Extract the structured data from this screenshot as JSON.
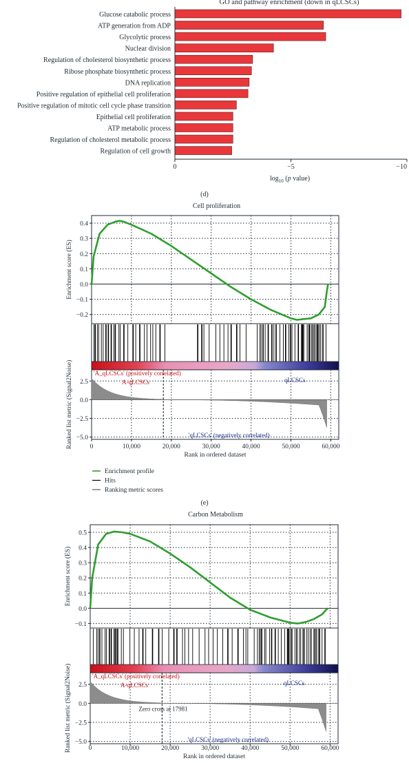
{
  "figure": {
    "panel_d_label": "(d)",
    "panel_e_label": "(e)"
  },
  "legend": {
    "items": [
      {
        "label": "Enrichment profile",
        "color": "#2e9e2e"
      },
      {
        "label": "Hits",
        "color": "#000000"
      },
      {
        "label": "Ranking metric scores",
        "color": "#808080"
      }
    ]
  },
  "chart_data": [
    {
      "id": "d",
      "type": "bar",
      "orientation": "horizontal",
      "title": "GO and pathway enrichment (down in qLCSCs)",
      "xlabel": "log10 (p value)",
      "xlabel_parts": {
        "prefix": "log",
        "sub": "10",
        "mid": " (",
        "ital": "p",
        "suffix": " value)"
      },
      "xlim": [
        0,
        -10
      ],
      "xticks": [
        0,
        -5,
        -10
      ],
      "xtick_labels": [
        "0",
        "−5",
        "−10"
      ],
      "bar_color": "#e8383b",
      "categories": [
        "Glucose catabolic process",
        "ATP generation from ADP",
        "Glycolytic process",
        "Nuclear division",
        "Regulation of cholesterol biosynthetic process",
        "Ribose phosphate biosynthetic process",
        "DNA replication",
        "Positive regulation of epithelial cell proliferation",
        "Positive regulation of mitotic cell cycle phase transition",
        "Epithelial cell proliferation",
        "ATP metabolic process",
        "Regulation of cholesterol metabolic process",
        "Regulation of cell growth"
      ],
      "values": [
        -9.75,
        -6.4,
        -6.5,
        -4.25,
        -3.35,
        -3.3,
        -3.2,
        -3.15,
        -2.65,
        -2.5,
        -2.5,
        -2.5,
        -2.45
      ]
    },
    {
      "id": "e",
      "type": "line",
      "title": "Cell proliferation",
      "es_ylabel": "Enrichment score (ES)",
      "es_yticks": [
        0.4,
        0.3,
        0.2,
        0.1,
        0.0,
        -0.1,
        -0.2
      ],
      "es_ytick_labels": [
        "0.4",
        "0.3",
        "0.2",
        "0.1",
        "0.0",
        "−0.1",
        "−0.2"
      ],
      "es_ylim": [
        -0.26,
        0.45
      ],
      "es_series": {
        "name": "Enrichment profile",
        "x": [
          0,
          500,
          2000,
          4000,
          6000,
          7000,
          8000,
          10000,
          15000,
          20000,
          25000,
          30000,
          35000,
          40000,
          45000,
          50000,
          51500,
          53000,
          55000,
          57000,
          58500,
          59000,
          59300
        ],
        "y": [
          0.0,
          0.18,
          0.33,
          0.39,
          0.41,
          0.415,
          0.41,
          0.39,
          0.33,
          0.25,
          0.16,
          0.07,
          -0.02,
          -0.1,
          -0.17,
          -0.225,
          -0.235,
          -0.23,
          -0.225,
          -0.2,
          -0.15,
          -0.05,
          0.0
        ]
      },
      "hits_ranges": [
        [
          0,
          19000
        ],
        [
          22000,
          23000
        ],
        [
          26000,
          40000
        ],
        [
          40000,
          59000
        ]
      ],
      "metric_ylabel": "Ranked list metric (Signal2Noise)",
      "metric_yticks": [
        2.5,
        0.0,
        -2.5,
        -5.0
      ],
      "metric_ytick_labels": [
        "2.5",
        "0.0",
        "−2.5",
        "−5.0"
      ],
      "metric_ylim": [
        -5.3,
        4.0
      ],
      "xlabel": "Rank in ordered dataset",
      "xlim": [
        0,
        62000
      ],
      "xticks": [
        0,
        10000,
        20000,
        30000,
        40000,
        50000,
        60000
      ],
      "xtick_labels": [
        "0",
        "10,000",
        "20,000",
        "30,000",
        "40,000",
        "50,000",
        "60,000"
      ],
      "annotations": {
        "pos_label": "'A_qLCSCs' (positively correlated)",
        "pos_group": "A-qLCSCs",
        "neg_group": "qLCSCs",
        "neg_label": "'qLCSCs' (negatively correlated)"
      },
      "zero_cross": 18000
    },
    {
      "id": "f",
      "type": "line",
      "title": "Carbon Metabolism",
      "es_ylabel": "Enrichment score (ES)",
      "es_yticks": [
        0.5,
        0.4,
        0.3,
        0.2,
        0.1,
        0.0,
        -0.1
      ],
      "es_ytick_labels": [
        "0.5",
        "0.4",
        "0.3",
        "0.2",
        "0.1",
        "0.0",
        "−0.1"
      ],
      "es_ylim": [
        -0.13,
        0.55
      ],
      "es_series": {
        "name": "Enrichment profile",
        "x": [
          0,
          500,
          2000,
          4000,
          6000,
          8000,
          10000,
          15000,
          20000,
          25000,
          30000,
          35000,
          40000,
          45000,
          50000,
          52000,
          54000,
          56000,
          58000,
          59000,
          59500
        ],
        "y": [
          0.0,
          0.2,
          0.42,
          0.49,
          0.505,
          0.5,
          0.49,
          0.44,
          0.36,
          0.27,
          0.17,
          0.07,
          -0.01,
          -0.06,
          -0.095,
          -0.1,
          -0.09,
          -0.07,
          -0.04,
          -0.01,
          0.0
        ]
      },
      "hits_ranges": [
        [
          0,
          24000
        ],
        [
          24000,
          40000
        ],
        [
          40000,
          59000
        ]
      ],
      "metric_ylabel": "Ranked list metric (Signal2Noise)",
      "metric_yticks": [
        2.5,
        0.0,
        -2.5,
        -5.0
      ],
      "metric_ytick_labels": [
        "2.5",
        "0.0",
        "−2.5",
        "−5.0"
      ],
      "metric_ylim": [
        -5.3,
        4.0
      ],
      "xlabel": "Rank in ordered dataset",
      "xlim": [
        0,
        62000
      ],
      "xticks": [
        0,
        10000,
        20000,
        30000,
        40000,
        50000,
        60000
      ],
      "xtick_labels": [
        "0",
        "10,000",
        "20,000",
        "30,000",
        "40,000",
        "50,000",
        "60,000"
      ],
      "annotations": {
        "pos_label": "'A_qLCSCs' (positively correlated)",
        "pos_group": "A-qLCSCs",
        "neg_group": "qLCSCs",
        "neg_label": "'qLCSCs' (negatively correlated)",
        "zero_cross_label": "Zero cross at 17981"
      },
      "zero_cross": 17981
    }
  ]
}
